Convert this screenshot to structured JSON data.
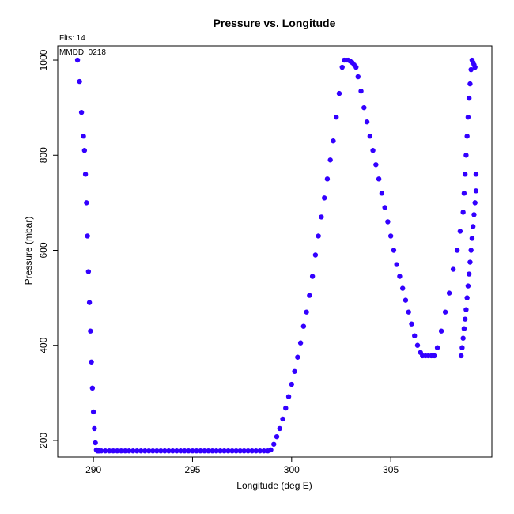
{
  "chart_data": {
    "type": "scatter",
    "title": "Pressure vs. Longitude",
    "subtitle": "Flts: 14",
    "annotation": "MMDD: 0218",
    "xlabel": "Longitude (deg E)",
    "ylabel": "Pressure (mbar)",
    "xlim": [
      288.2,
      310.1
    ],
    "ylim": [
      1030,
      165
    ],
    "y_reversed": true,
    "x_ticks": [
      290,
      295,
      300,
      305
    ],
    "y_ticks": [
      200,
      400,
      600,
      800,
      1000
    ],
    "grid": false,
    "legend": "none",
    "point_color": "#3300ff",
    "series": [
      {
        "x": [
          289.2,
          289.3,
          289.4,
          289.5,
          289.55,
          289.6,
          289.65,
          289.7,
          289.75,
          289.8,
          289.85,
          289.9,
          289.95,
          290.0,
          290.05,
          290.1,
          290.15,
          290.2,
          290.25,
          290.3,
          290.4,
          290.6,
          290.8,
          291.0,
          291.2,
          291.4,
          291.6,
          291.8,
          292.0,
          292.2,
          292.4,
          292.6,
          292.8,
          293.0,
          293.2,
          293.4,
          293.6,
          293.8,
          294.0,
          294.2,
          294.4,
          294.6,
          294.8,
          295.0,
          295.2,
          295.4,
          295.6,
          295.8,
          296.0,
          296.2,
          296.4,
          296.6,
          296.8,
          297.0,
          297.2,
          297.4,
          297.6,
          297.8,
          298.0,
          298.2,
          298.4,
          298.6,
          298.8,
          298.95,
          299.1,
          299.25,
          299.4,
          299.55,
          299.7,
          299.85,
          300.0,
          300.15,
          300.3,
          300.45,
          300.6,
          300.75,
          300.9,
          301.05,
          301.2,
          301.35,
          301.5,
          301.65,
          301.8,
          301.95,
          302.1,
          302.25,
          302.4,
          302.55,
          302.65,
          302.75,
          302.85,
          302.95,
          303.05,
          303.15,
          303.25,
          303.35,
          303.5,
          303.65,
          303.8,
          303.95,
          304.1,
          304.25,
          304.4,
          304.55,
          304.7,
          304.85,
          305.0,
          305.15,
          305.3,
          305.45,
          305.6,
          305.75,
          305.9,
          306.05,
          306.2,
          306.35,
          306.5,
          306.6,
          306.75,
          306.9,
          307.05,
          307.2,
          307.35,
          307.55,
          307.75,
          307.95,
          308.15,
          308.35,
          308.5,
          308.65,
          308.7,
          308.75,
          308.8,
          308.85,
          308.9,
          308.95,
          309.0,
          309.05,
          309.1,
          309.15,
          309.2,
          309.25,
          308.55,
          308.6,
          308.65,
          308.7,
          308.75,
          308.8,
          308.85,
          308.9,
          308.95,
          309.0,
          309.05,
          309.1,
          309.15,
          309.2,
          309.25,
          309.3,
          309.3
        ],
        "y": [
          1000,
          955,
          890,
          840,
          810,
          760,
          700,
          630,
          555,
          490,
          430,
          365,
          310,
          260,
          225,
          195,
          180,
          178,
          178,
          178,
          178,
          178,
          178,
          178,
          178,
          178,
          178,
          178,
          178,
          178,
          178,
          178,
          178,
          178,
          178,
          178,
          178,
          178,
          178,
          178,
          178,
          178,
          178,
          178,
          178,
          178,
          178,
          178,
          178,
          178,
          178,
          178,
          178,
          178,
          178,
          178,
          178,
          178,
          178,
          178,
          178,
          178,
          178,
          180,
          192,
          208,
          225,
          245,
          268,
          292,
          318,
          345,
          375,
          405,
          440,
          470,
          505,
          545,
          590,
          630,
          670,
          710,
          750,
          790,
          830,
          880,
          930,
          985,
          1000,
          1000,
          1000,
          998,
          995,
          990,
          985,
          965,
          935,
          900,
          870,
          840,
          810,
          780,
          750,
          720,
          690,
          660,
          630,
          600,
          570,
          545,
          520,
          495,
          470,
          445,
          420,
          400,
          385,
          378,
          378,
          378,
          378,
          378,
          395,
          430,
          470,
          510,
          560,
          600,
          640,
          680,
          720,
          760,
          800,
          840,
          880,
          920,
          950,
          980,
          1000,
          995,
          990,
          985,
          378,
          395,
          415,
          435,
          455,
          475,
          500,
          525,
          550,
          575,
          600,
          625,
          650,
          675,
          700,
          725,
          760
        ]
      }
    ]
  }
}
